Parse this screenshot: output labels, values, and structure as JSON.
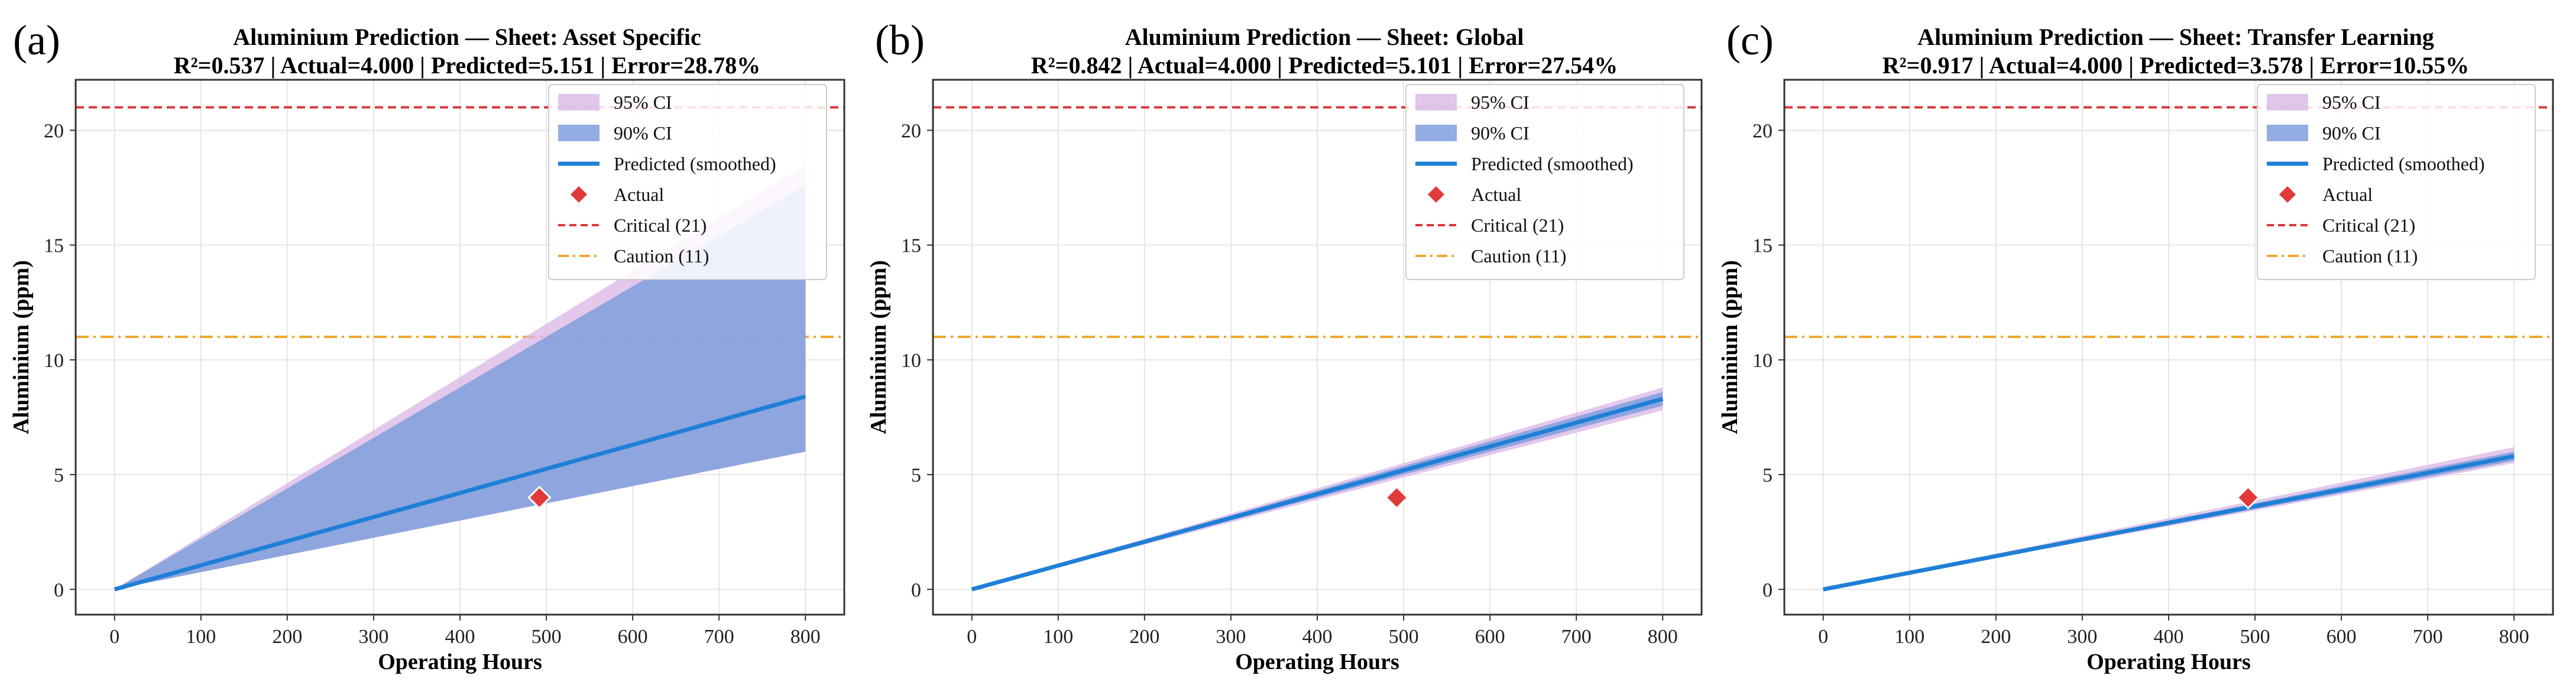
{
  "figure": {
    "xlabel": "Operating Hours",
    "ylabel": "Aluminium (ppm)",
    "legend_labels": [
      "95% CI",
      "90% CI",
      "Predicted (smoothed)",
      "Actual",
      "Critical (21)",
      "Caution (11)"
    ],
    "colors": {
      "ci95": "#d9b6e6",
      "ci90": "#7f9fdc",
      "predicted": "#1f7fd6",
      "actual": "#e03a3a",
      "critical": "#d93a3a",
      "caution": "#f0a830"
    }
  },
  "chart_data": [
    {
      "type": "line",
      "panel_label": "(a)",
      "title": "Aluminium Prediction — Sheet: Asset Specific",
      "subtitle": "R²=0.537 | Actual=4.000 | Predicted=5.151 | Error=28.78%",
      "xlabel": "Operating Hours",
      "ylabel": "Aluminium (ppm)",
      "xlim": [
        -45,
        845
      ],
      "ylim": [
        -1.1,
        22.2
      ],
      "xticks": [
        0,
        100,
        200,
        300,
        400,
        500,
        600,
        700,
        800
      ],
      "yticks": [
        0,
        5,
        10,
        15,
        20
      ],
      "predicted": {
        "x": [
          0,
          800
        ],
        "y": [
          0,
          8.4
        ]
      },
      "ci95": {
        "x": [
          0,
          800
        ],
        "lower": [
          0,
          6.0
        ],
        "upper": [
          0,
          18.5
        ]
      },
      "ci90": {
        "x": [
          0,
          800
        ],
        "lower": [
          0,
          6.0
        ],
        "upper": [
          0,
          17.6
        ]
      },
      "actual": {
        "x": 492,
        "y": 4.0
      },
      "critical": 21,
      "caution": 11,
      "legend_position": "upper-right"
    },
    {
      "type": "line",
      "panel_label": "(b)",
      "title": "Aluminium Prediction — Sheet: Global",
      "subtitle": "R²=0.842 | Actual=4.000 | Predicted=5.101 | Error=27.54%",
      "xlabel": "Operating Hours",
      "ylabel": "Aluminium (ppm)",
      "xlim": [
        -45,
        845
      ],
      "ylim": [
        -1.1,
        22.2
      ],
      "xticks": [
        0,
        100,
        200,
        300,
        400,
        500,
        600,
        700,
        800
      ],
      "yticks": [
        0,
        5,
        10,
        15,
        20
      ],
      "predicted": {
        "x": [
          0,
          800
        ],
        "y": [
          0,
          8.3
        ]
      },
      "ci95": {
        "x": [
          0,
          800
        ],
        "lower": [
          0,
          7.8
        ],
        "upper": [
          0,
          8.8
        ]
      },
      "ci90": {
        "x": [
          0,
          800
        ],
        "lower": [
          0,
          8.0
        ],
        "upper": [
          0,
          8.6
        ]
      },
      "actual": {
        "x": 492,
        "y": 4.0
      },
      "critical": 21,
      "caution": 11,
      "legend_position": "upper-right"
    },
    {
      "type": "line",
      "panel_label": "(c)",
      "title": "Aluminium Prediction — Sheet: Transfer Learning",
      "subtitle": "R²=0.917 | Actual=4.000 | Predicted=3.578 | Error=10.55%",
      "xlabel": "Operating Hours",
      "ylabel": "Aluminium (ppm)",
      "xlim": [
        -45,
        845
      ],
      "ylim": [
        -1.1,
        22.2
      ],
      "xticks": [
        0,
        100,
        200,
        300,
        400,
        500,
        600,
        700,
        800
      ],
      "yticks": [
        0,
        5,
        10,
        15,
        20
      ],
      "predicted": {
        "x": [
          0,
          800
        ],
        "y": [
          0,
          5.8
        ]
      },
      "ci95": {
        "x": [
          0,
          800
        ],
        "lower": [
          0,
          5.5
        ],
        "upper": [
          0,
          6.2
        ]
      },
      "ci90": {
        "x": [
          0,
          800
        ],
        "lower": [
          0,
          5.6
        ],
        "upper": [
          0,
          6.0
        ]
      },
      "actual": {
        "x": 492,
        "y": 4.0
      },
      "critical": 21,
      "caution": 11,
      "legend_position": "upper-right"
    }
  ]
}
